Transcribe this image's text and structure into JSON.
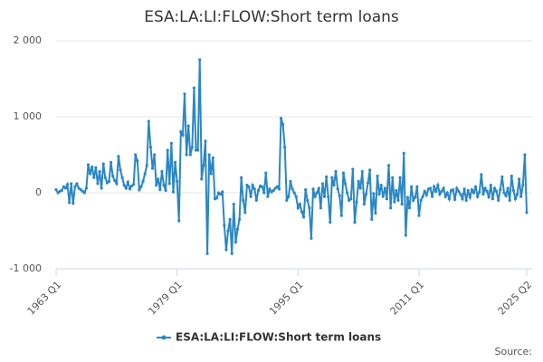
{
  "chart_data": {
    "type": "line",
    "title": "ESA:LA:LI:FLOW:Short term loans",
    "source": "Source:",
    "categories": [
      "1963 Q1",
      null,
      null,
      null,
      null,
      null,
      null,
      null,
      null,
      null,
      null,
      null,
      null,
      null,
      null,
      null,
      null,
      null,
      null,
      null,
      null,
      null,
      null,
      null,
      null,
      null,
      null,
      null,
      null,
      null,
      null,
      null,
      null,
      null,
      null,
      null,
      null,
      null,
      null,
      null,
      null,
      null,
      null,
      null,
      null,
      null,
      null,
      null,
      null,
      null,
      null,
      null,
      null,
      null,
      null,
      null,
      null,
      null,
      null,
      null,
      null,
      null,
      null,
      null,
      "1979 Q1",
      null,
      null,
      null,
      null,
      null,
      null,
      null,
      null,
      null,
      null,
      null,
      null,
      null,
      null,
      null,
      null,
      null,
      null,
      null,
      null,
      null,
      null,
      null,
      null,
      null,
      null,
      null,
      null,
      null,
      null,
      null,
      null,
      null,
      null,
      null,
      null,
      null,
      null,
      null,
      null,
      null,
      null,
      null,
      null,
      null,
      null,
      null,
      null,
      null,
      null,
      null,
      null,
      null,
      null,
      null,
      null,
      null,
      null,
      null,
      null,
      null,
      null,
      null,
      "1995 Q1",
      null,
      null,
      null,
      null,
      null,
      null,
      null,
      null,
      null,
      null,
      null,
      null,
      null,
      null,
      null,
      null,
      null,
      null,
      null,
      null,
      null,
      null,
      null,
      null,
      null,
      null,
      null,
      null,
      null,
      null,
      null,
      null,
      null,
      null,
      null,
      null,
      null,
      null,
      null,
      null,
      null,
      null,
      null,
      null,
      null,
      null,
      null,
      null,
      null,
      null,
      null,
      null,
      null,
      null,
      null,
      null,
      null,
      null,
      null,
      null,
      null,
      null,
      null,
      "2011 Q1",
      null,
      null,
      null,
      null,
      null,
      null,
      null,
      null,
      null,
      null,
      null,
      null,
      null,
      null,
      null,
      null,
      null,
      null,
      null,
      null,
      null,
      null,
      null,
      null,
      null,
      null,
      null,
      null,
      null,
      null,
      null,
      null,
      null,
      null,
      null,
      null,
      null,
      null,
      null,
      null,
      null,
      null,
      null,
      null,
      null,
      null,
      null,
      null,
      null,
      null,
      null,
      null,
      null,
      null,
      null,
      null,
      "2025 Q2"
    ],
    "series": [
      {
        "name": "ESA:LA:LI:FLOW:Short term loans",
        "color": "#2b87c3",
        "values": [
          40,
          0,
          20,
          30,
          80,
          60,
          110,
          -130,
          120,
          -140,
          80,
          120,
          60,
          40,
          20,
          0,
          60,
          370,
          250,
          340,
          200,
          330,
          120,
          280,
          60,
          380,
          200,
          130,
          150,
          400,
          220,
          160,
          120,
          480,
          300,
          200,
          100,
          60,
          140,
          50,
          90,
          110,
          500,
          420,
          40,
          80,
          150,
          250,
          360,
          940,
          600,
          320,
          500,
          100,
          180,
          40,
          280,
          100,
          30,
          560,
          120,
          650,
          10,
          400,
          150,
          -370,
          800,
          760,
          1300,
          500,
          880,
          500,
          600,
          1380,
          560,
          560,
          1750,
          180,
          360,
          680,
          -800,
          500,
          250,
          460,
          -80,
          -70,
          0,
          -20,
          10,
          -430,
          -750,
          -500,
          -350,
          -800,
          -150,
          -650,
          -480,
          -350,
          200,
          -100,
          -260,
          100,
          80,
          -50,
          100,
          50,
          -100,
          30,
          90,
          80,
          0,
          260,
          -50,
          50,
          10,
          30,
          60,
          80,
          50,
          980,
          900,
          600,
          -100,
          -50,
          150,
          50,
          0,
          -50,
          -200,
          -150,
          -250,
          -320,
          40,
          -100,
          -200,
          -600,
          50,
          -50,
          0,
          60,
          -200,
          120,
          -50,
          210,
          -50,
          -390,
          200,
          100,
          280,
          50,
          -40,
          -300,
          260,
          120,
          0,
          -100,
          -80,
          310,
          -390,
          -120,
          150,
          60,
          280,
          -150,
          -20,
          130,
          300,
          -350,
          -10,
          -270,
          220,
          -20,
          100,
          -50,
          60,
          -80,
          360,
          -200,
          200,
          -120,
          30,
          -100,
          200,
          -150,
          520,
          -560,
          -60,
          -200,
          80,
          -100,
          -60,
          80,
          -300,
          -100,
          -50,
          20,
          -30,
          50,
          60,
          -50,
          80,
          20,
          100,
          -20,
          20,
          60,
          -50,
          0,
          -80,
          30,
          40,
          -90,
          60,
          20,
          -20,
          -80,
          50,
          -100,
          30,
          -60,
          40,
          0,
          80,
          -50,
          10,
          240,
          -20,
          60,
          20,
          -60,
          100,
          -80,
          60,
          20,
          -100,
          40,
          210,
          0,
          -40,
          60,
          -100,
          220,
          30,
          -80,
          -20,
          180,
          -50,
          100,
          500,
          -260
        ]
      }
    ],
    "ylim": [
      -1000,
      2000
    ],
    "yticks": [
      {
        "value": -1000,
        "label": "-1 000"
      },
      0,
      {
        "value": 1000,
        "label": "1 000"
      },
      {
        "value": 2000,
        "label": "2 000"
      }
    ],
    "grid": true,
    "legend": "bottom"
  }
}
